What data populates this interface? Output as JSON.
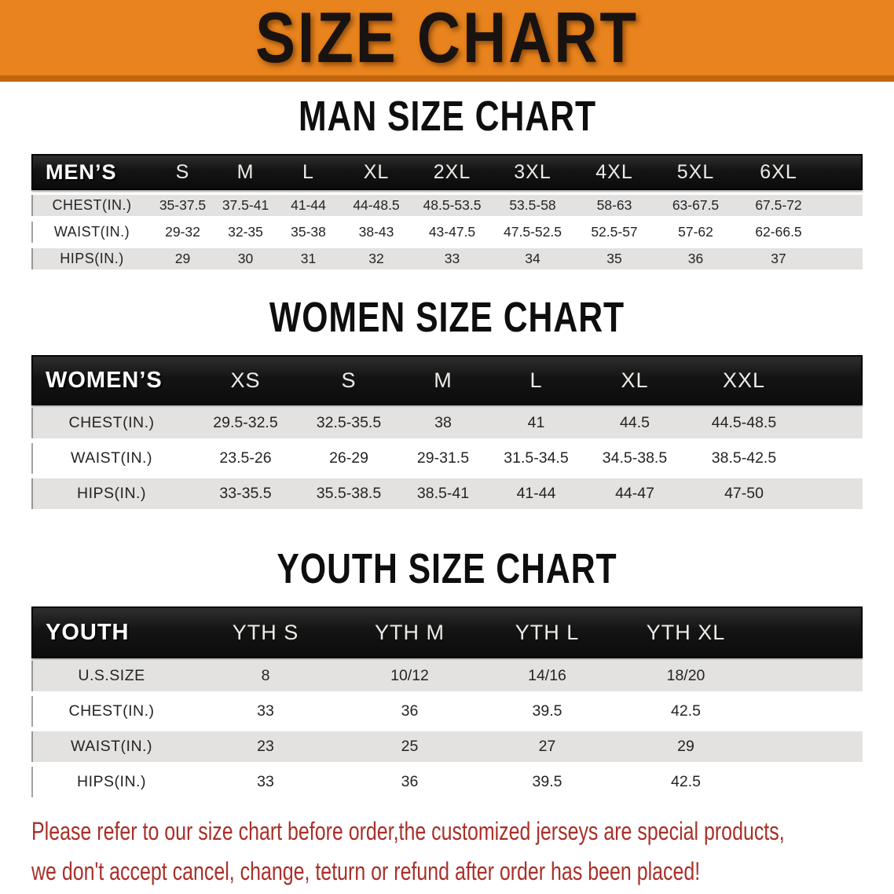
{
  "banner": {
    "title": "SIZE CHART",
    "bg_color": "#e8831d",
    "edge_color": "#c0660e"
  },
  "sections": [
    {
      "key": "men",
      "heading": "MAN SIZE CHART",
      "group_label": "MEN’S",
      "sizes": [
        "S",
        "M",
        "L",
        "XL",
        "2XL",
        "3XL",
        "4XL",
        "5XL",
        "6XL"
      ],
      "rows": [
        {
          "label": "CHEST(IN.)",
          "values": [
            "35-37.5",
            "37.5-41",
            "41-44",
            "44-48.5",
            "48.5-53.5",
            "53.5-58",
            "58-63",
            "63-67.5",
            "67.5-72"
          ]
        },
        {
          "label": "WAIST(IN.)",
          "values": [
            "29-32",
            "32-35",
            "35-38",
            "38-43",
            "43-47.5",
            "47.5-52.5",
            "52.5-57",
            "57-62",
            "62-66.5"
          ]
        },
        {
          "label": "HIPS(IN.)",
          "values": [
            "29",
            "30",
            "31",
            "32",
            "33",
            "34",
            "35",
            "36",
            "37"
          ]
        }
      ]
    },
    {
      "key": "women",
      "heading": "WOMEN SIZE CHART",
      "group_label": "WOMEN’S",
      "sizes": [
        "XS",
        "S",
        "M",
        "L",
        "XL",
        "XXL"
      ],
      "rows": [
        {
          "label": "CHEST(IN.)",
          "values": [
            "29.5-32.5",
            "32.5-35.5",
            "38",
            "41",
            "44.5",
            "44.5-48.5"
          ]
        },
        {
          "label": "WAIST(IN.)",
          "values": [
            "23.5-26",
            "26-29",
            "29-31.5",
            "31.5-34.5",
            "34.5-38.5",
            "38.5-42.5"
          ]
        },
        {
          "label": "HIPS(IN.)",
          "values": [
            "33-35.5",
            "35.5-38.5",
            "38.5-41",
            "41-44",
            "44-47",
            "47-50"
          ]
        }
      ]
    },
    {
      "key": "youth",
      "heading": "YOUTH SIZE CHART",
      "group_label": "YOUTH",
      "sizes": [
        "YTH S",
        "YTH M",
        "YTH L",
        "YTH XL"
      ],
      "rows": [
        {
          "label": "U.S.SIZE",
          "values": [
            "8",
            "10/12",
            "14/16",
            "18/20"
          ]
        },
        {
          "label": "CHEST(IN.)",
          "values": [
            "33",
            "36",
            "39.5",
            "42.5"
          ]
        },
        {
          "label": "WAIST(IN.)",
          "values": [
            "23",
            "25",
            "27",
            "29"
          ]
        },
        {
          "label": "HIPS(IN.)",
          "values": [
            "33",
            "36",
            "39.5",
            "42.5"
          ]
        }
      ]
    }
  ],
  "row_colors": {
    "striped": "#e3e2e1",
    "plain": "#ffffff",
    "header_bg": "#141414"
  },
  "disclaimer": {
    "color": "#a93029",
    "lines": [
      "Please refer to our size chart before order,the customized jerseys are special products,",
      "we don't accept cancel, change, teturn or refund after order has been placed!"
    ]
  }
}
